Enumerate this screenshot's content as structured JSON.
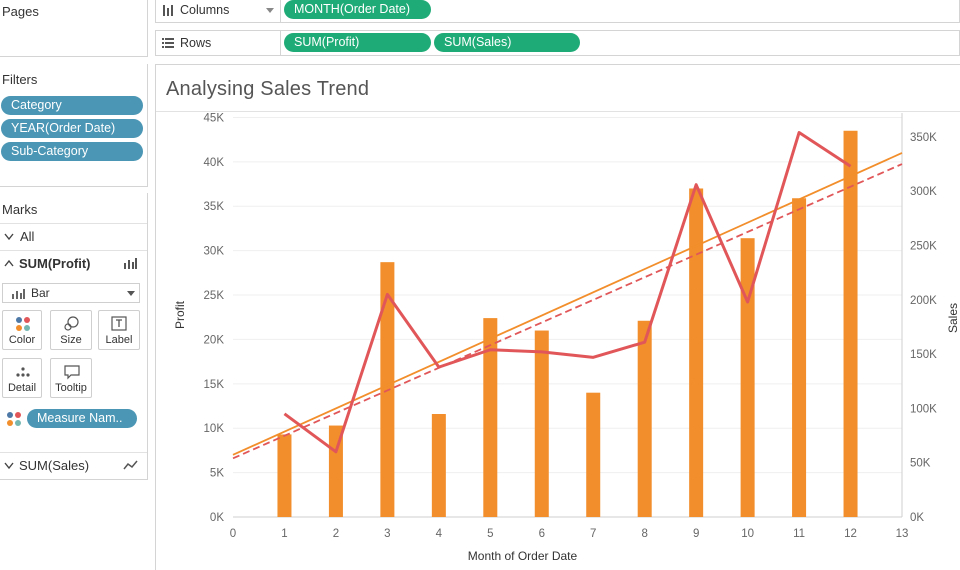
{
  "pages": {
    "title": "Pages"
  },
  "filters": {
    "title": "Filters",
    "items": [
      "Category",
      "YEAR(Order Date)",
      "Sub-Category"
    ]
  },
  "marks": {
    "title": "Marks",
    "all_label": "All",
    "sum_profit_label": "SUM(Profit)",
    "mark_type": "Bar",
    "buttons": {
      "color": "Color",
      "size": "Size",
      "label": "Label",
      "detail": "Detail",
      "tooltip": "Tooltip"
    },
    "measure_pill": "Measure Nam..",
    "sum_sales_label": "SUM(Sales)"
  },
  "shelves": {
    "columns_label": "Columns",
    "columns_pill": "MONTH(Order Date)",
    "rows_label": "Rows",
    "rows_pills": [
      "SUM(Profit)",
      "SUM(Sales)"
    ]
  },
  "sheet_title": "Analysing Sales Trend",
  "colors": {
    "bar": "#f28e2b",
    "line": "#e15759",
    "pill_green": "#1fab77",
    "pill_blue": "#4a96b4"
  },
  "chart_data": {
    "type": "bar",
    "xlabel": "Month of Order Date",
    "ylabel": "Profit",
    "ylabel_right": "Sales",
    "x_ticks": [
      0,
      1,
      2,
      3,
      4,
      5,
      6,
      7,
      8,
      9,
      10,
      11,
      12,
      13
    ],
    "y_ticks_left": [
      "0K",
      "5K",
      "10K",
      "15K",
      "20K",
      "25K",
      "30K",
      "35K",
      "40K",
      "45K"
    ],
    "y_ticks_right": [
      "0K",
      "50K",
      "100K",
      "150K",
      "200K",
      "250K",
      "300K",
      "350K"
    ],
    "xlim": [
      0,
      13
    ],
    "ylim_left": [
      0,
      45500
    ],
    "ylim_right": [
      0,
      372000
    ],
    "grid": true,
    "series": [
      {
        "name": "SUM(Profit)",
        "mark": "bar",
        "axis": "left",
        "x": [
          1,
          2,
          3,
          4,
          5,
          6,
          7,
          8,
          9,
          10,
          11,
          12
        ],
        "values": [
          9300,
          10300,
          28700,
          11600,
          22400,
          21000,
          14000,
          22100,
          37000,
          31400,
          35900,
          43500
        ]
      },
      {
        "name": "SUM(Sales)",
        "mark": "line",
        "axis": "right",
        "x": [
          1,
          2,
          3,
          4,
          5,
          6,
          7,
          8,
          9,
          10,
          11,
          12
        ],
        "values": [
          95000,
          60000,
          205000,
          138000,
          154000,
          152000,
          147000,
          161000,
          306000,
          198000,
          354000,
          323000
        ]
      }
    ],
    "trend_lines": [
      {
        "series": "SUM(Profit)",
        "style": "solid",
        "x": [
          0,
          13
        ],
        "values": [
          7000,
          41000
        ]
      },
      {
        "series": "SUM(Sales)",
        "style": "dashed",
        "axis": "right",
        "x": [
          0,
          13
        ],
        "values": [
          54000,
          325000
        ]
      }
    ]
  }
}
